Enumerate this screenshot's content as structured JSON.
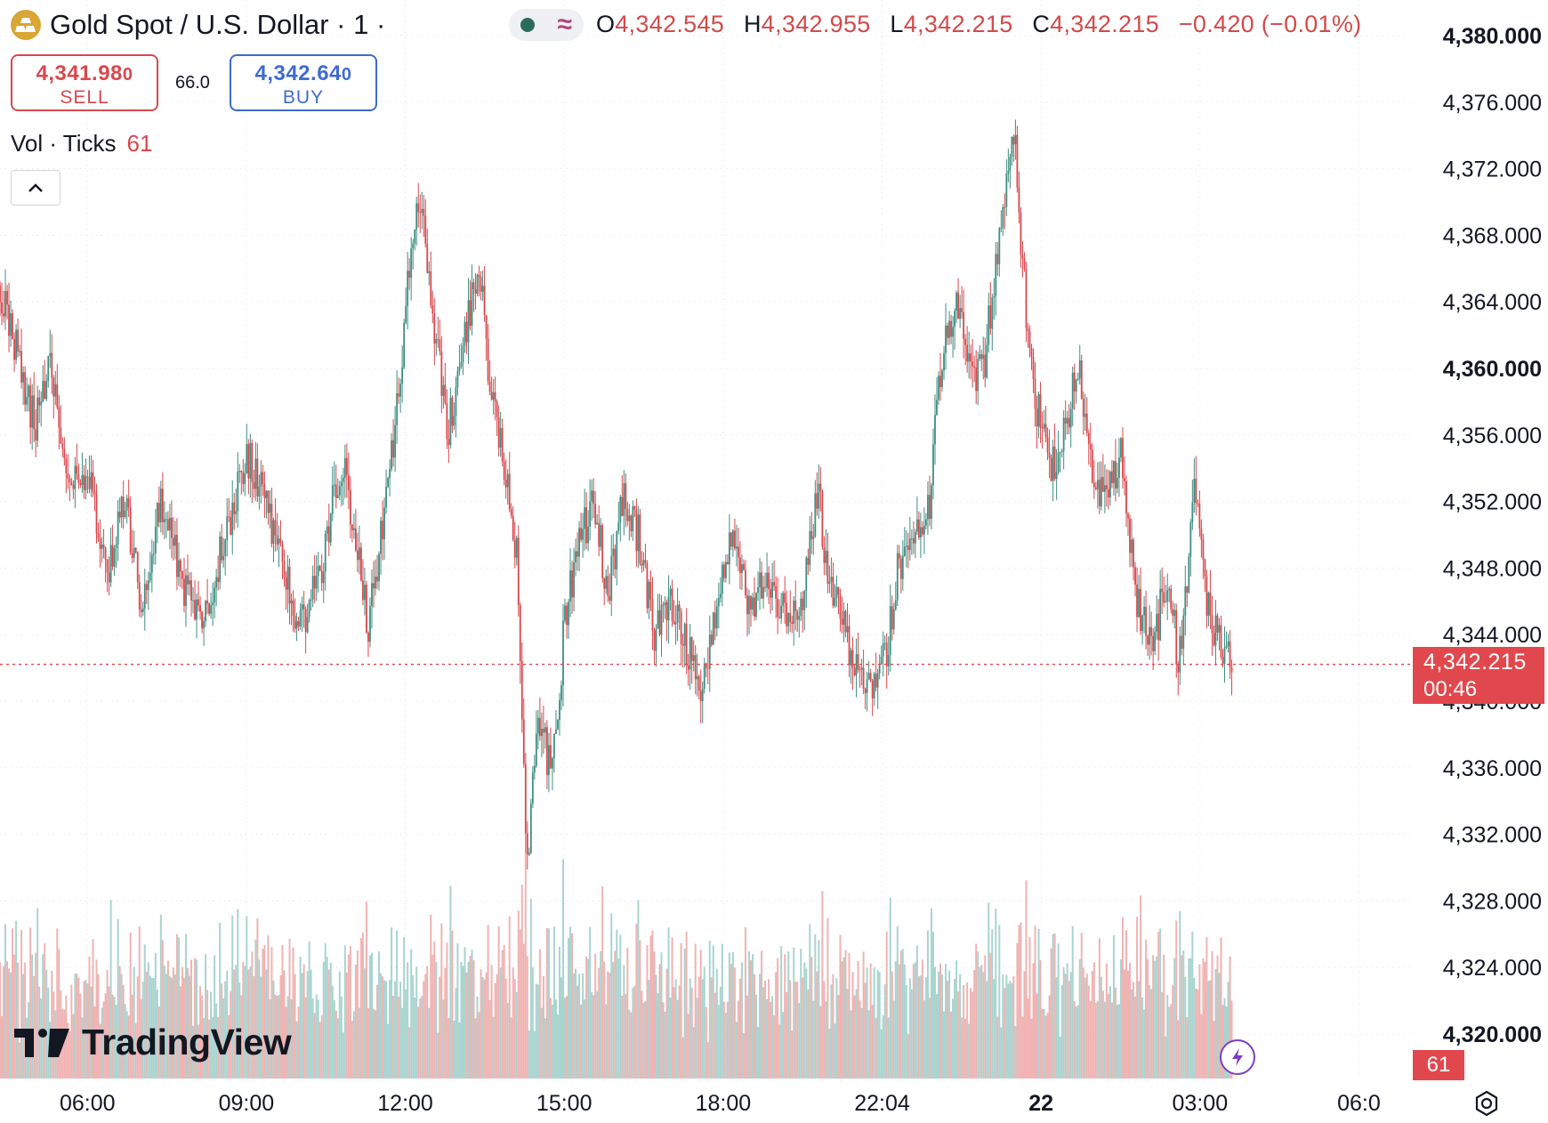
{
  "header": {
    "symbol_title": "Gold Spot / U.S. Dollar · 1 ·",
    "ohlc": {
      "o_label": "O",
      "o_value": "4,342.545",
      "h_label": "H",
      "h_value": "4,342.955",
      "l_label": "L",
      "l_value": "4,342.215",
      "c_label": "C",
      "c_value": "4,342.215",
      "change": "−0.420 (−0.01%)"
    },
    "logo_icon": "gold-bars-icon",
    "indicator_icons": [
      "green-dot-icon",
      "wave-icon"
    ]
  },
  "trade": {
    "sell_price_main": "4,341.98",
    "sell_price_small": "0",
    "sell_label": "SELL",
    "spread": "66.0",
    "buy_price_main": "4,342.64",
    "buy_price_small": "0",
    "buy_label": "BUY"
  },
  "volume_legend": {
    "label": "Vol · Ticks",
    "value": "61"
  },
  "price_tag": {
    "price": "4,342.215",
    "countdown": "00:46"
  },
  "volume_tag": "61",
  "branding": "TradingView",
  "colors": {
    "up": "#3f8e80",
    "down": "#d9474d",
    "last_price_line": "#e0484d",
    "vol_up": "#a9d4cf",
    "vol_down": "#f0b3b3"
  },
  "chart_data": {
    "type": "candlestick",
    "interval": "1 minute",
    "y_axis": {
      "ticks": [
        "4,380.000",
        "4,376.000",
        "4,372.000",
        "4,368.000",
        "4,364.000",
        "4,360.000",
        "4,356.000",
        "4,352.000",
        "4,348.000",
        "4,344.000",
        "4,340.000",
        "4,336.000",
        "4,332.000",
        "4,328.000",
        "4,324.000",
        "4,320.000"
      ],
      "tick_values": [
        4380,
        4376,
        4372,
        4368,
        4364,
        4360,
        4356,
        4352,
        4348,
        4344,
        4340,
        4336,
        4332,
        4328,
        4324,
        4320
      ],
      "bold_ticks": [
        "4,380.000",
        "4,360.000",
        "4,320.000"
      ],
      "range": [
        4320,
        4380
      ]
    },
    "x_axis": {
      "ticks": [
        "06:00",
        "09:00",
        "12:00",
        "15:00",
        "18:00",
        "22:04",
        "22",
        "03:00",
        "06:0"
      ],
      "tick_hours": [
        6,
        9,
        12,
        15,
        18,
        21,
        24,
        27,
        30
      ],
      "bold_ticks": [
        "22"
      ],
      "range_hours": [
        4.35,
        31.05
      ]
    },
    "price_path": [
      [
        4.35,
        4365.0
      ],
      [
        4.6,
        4362.0
      ],
      [
        5.0,
        4356.5
      ],
      [
        5.3,
        4361.0
      ],
      [
        5.6,
        4354.0
      ],
      [
        6.0,
        4353.5
      ],
      [
        6.4,
        4348.0
      ],
      [
        6.7,
        4352.5
      ],
      [
        7.0,
        4346.0
      ],
      [
        7.4,
        4352.0
      ],
      [
        7.8,
        4347.0
      ],
      [
        8.2,
        4344.5
      ],
      [
        8.6,
        4350.0
      ],
      [
        9.0,
        4355.0
      ],
      [
        9.4,
        4351.5
      ],
      [
        9.7,
        4348.0
      ],
      [
        10.0,
        4344.0
      ],
      [
        10.4,
        4348.0
      ],
      [
        10.8,
        4354.5
      ],
      [
        11.1,
        4349.0
      ],
      [
        11.3,
        4344.5
      ],
      [
        11.6,
        4351.0
      ],
      [
        11.9,
        4359.0
      ],
      [
        12.1,
        4367.0
      ],
      [
        12.3,
        4370.0
      ],
      [
        12.5,
        4364.0
      ],
      [
        12.8,
        4356.0
      ],
      [
        13.1,
        4362.0
      ],
      [
        13.4,
        4366.0
      ],
      [
        13.6,
        4359.0
      ],
      [
        13.9,
        4354.0
      ],
      [
        14.1,
        4349.0
      ],
      [
        14.3,
        4330.0
      ],
      [
        14.5,
        4340.0
      ],
      [
        14.7,
        4336.0
      ],
      [
        14.9,
        4338.0
      ],
      [
        15.0,
        4345.0
      ],
      [
        15.3,
        4350.0
      ],
      [
        15.6,
        4352.0
      ],
      [
        15.8,
        4346.0
      ],
      [
        16.1,
        4352.0
      ],
      [
        16.4,
        4350.0
      ],
      [
        16.7,
        4344.0
      ],
      [
        17.0,
        4346.0
      ],
      [
        17.3,
        4343.5
      ],
      [
        17.6,
        4341.0
      ],
      [
        17.9,
        4346.0
      ],
      [
        18.2,
        4350.5
      ],
      [
        18.5,
        4345.0
      ],
      [
        18.8,
        4348.0
      ],
      [
        19.2,
        4345.0
      ],
      [
        19.5,
        4346.5
      ],
      [
        19.8,
        4352.5
      ],
      [
        20.0,
        4347.0
      ],
      [
        20.3,
        4344.0
      ],
      [
        20.6,
        4341.0
      ],
      [
        20.9,
        4340.5
      ],
      [
        21.1,
        4343.5
      ],
      [
        21.3,
        4348.0
      ],
      [
        21.6,
        4350.5
      ],
      [
        21.9,
        4352.0
      ],
      [
        22.1,
        4360.0
      ],
      [
        22.4,
        4364.0
      ],
      [
        22.7,
        4360.0
      ],
      [
        22.9,
        4359.5
      ],
      [
        23.2,
        4368.0
      ],
      [
        23.5,
        4374.0
      ],
      [
        23.7,
        4364.0
      ],
      [
        23.9,
        4358.0
      ],
      [
        24.2,
        4354.0
      ],
      [
        24.4,
        4356.0
      ],
      [
        24.7,
        4360.0
      ],
      [
        24.9,
        4355.0
      ],
      [
        25.2,
        4352.0
      ],
      [
        25.5,
        4355.0
      ],
      [
        25.8,
        4346.0
      ],
      [
        26.1,
        4343.0
      ],
      [
        26.4,
        4348.0
      ],
      [
        26.6,
        4342.0
      ],
      [
        26.9,
        4353.0
      ],
      [
        27.1,
        4346.0
      ],
      [
        27.4,
        4343.0
      ],
      [
        27.6,
        4342.2
      ]
    ],
    "volume_range": [
      0,
      65
    ],
    "last_price": 4342.215,
    "highlight_value": "4,342.215"
  }
}
